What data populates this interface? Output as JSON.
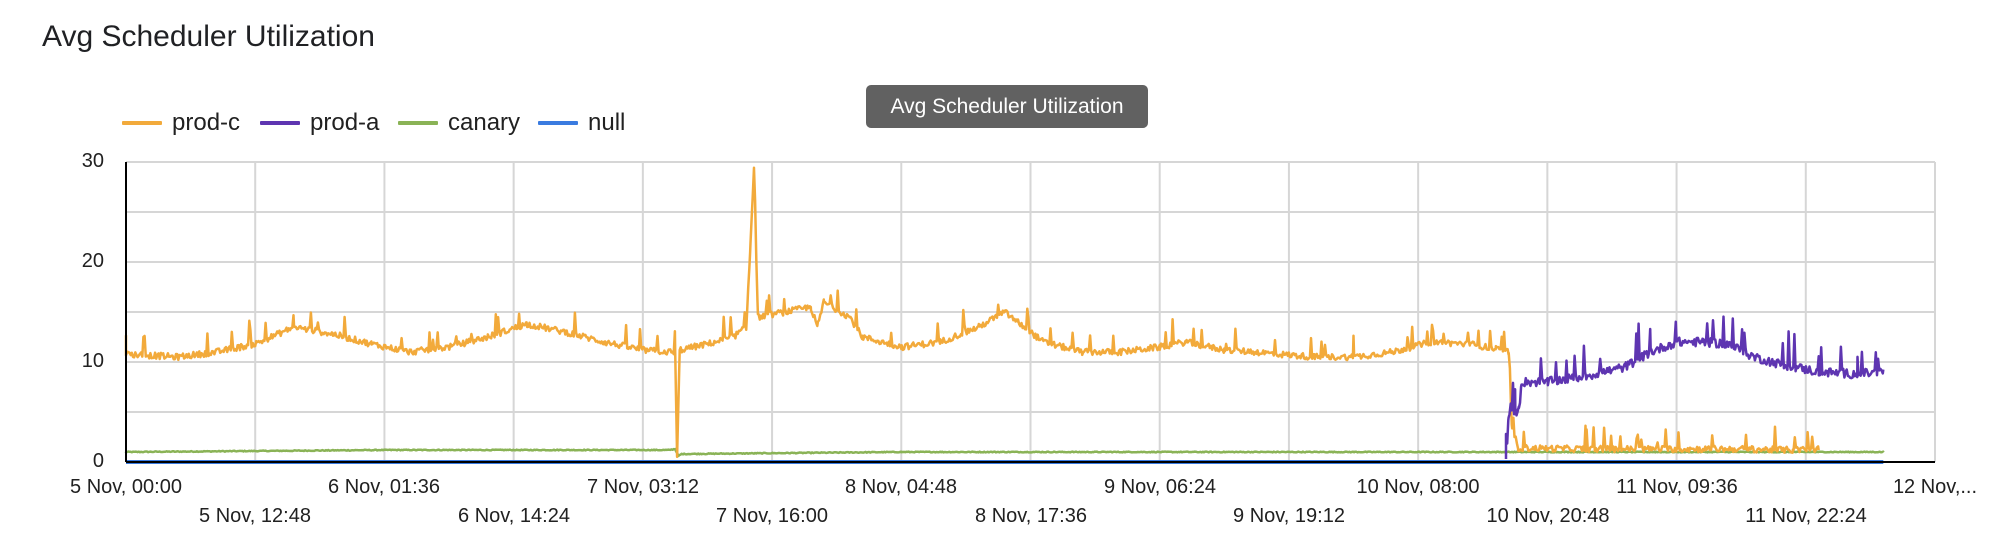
{
  "header": {
    "title": "Avg Scheduler Utilization"
  },
  "tooltip": {
    "text": "Avg Scheduler Utilization"
  },
  "legend": [
    {
      "label": "prod-c",
      "color": "#F2AA3B"
    },
    {
      "label": "prod-a",
      "color": "#5E35B1"
    },
    {
      "label": "canary",
      "color": "#8AB356"
    },
    {
      "label": "null",
      "color": "#3A7BE0"
    }
  ],
  "axes": {
    "y_ticks": [
      "30",
      "20",
      "10",
      "0"
    ],
    "x_ticks_top": [
      "5 Nov, 00:00",
      "6 Nov, 01:36",
      "7 Nov, 03:12",
      "8 Nov, 04:48",
      "9 Nov, 06:24",
      "10 Nov, 08:00",
      "11 Nov, 09:36",
      "12 Nov,..."
    ],
    "x_ticks_bottom": [
      "5 Nov, 12:48",
      "6 Nov, 14:24",
      "7 Nov, 16:00",
      "8 Nov, 17:36",
      "9 Nov, 19:12",
      "10 Nov, 20:48",
      "11 Nov, 22:24"
    ]
  },
  "chart_data": {
    "type": "line",
    "title": "Avg Scheduler Utilization",
    "xlabel": "",
    "ylabel": "",
    "ylim": [
      0,
      30
    ],
    "y_gridlines": [
      0,
      5,
      10,
      15,
      20,
      25,
      30
    ],
    "x_tick_labels": [
      "5 Nov, 00:00",
      "5 Nov, 12:48",
      "6 Nov, 01:36",
      "6 Nov, 14:24",
      "7 Nov, 03:12",
      "7 Nov, 16:00",
      "8 Nov, 04:48",
      "8 Nov, 17:36",
      "9 Nov, 06:24",
      "9 Nov, 19:12",
      "10 Nov, 08:00",
      "10 Nov, 20:48",
      "11 Nov, 09:36",
      "11 Nov, 22:24",
      "12 Nov,..."
    ],
    "x_unit": "hours since 5 Nov 00:00",
    "xlim": [
      0,
      179.2
    ],
    "grid": true,
    "legend_position": "top-left",
    "series": [
      {
        "name": "prod-c",
        "color": "#F2AA3B",
        "points": [
          [
            0,
            10.8
          ],
          [
            8,
            10.5
          ],
          [
            14,
            11.0
          ],
          [
            20,
            11.8
          ],
          [
            26,
            13.5
          ],
          [
            32,
            12.8
          ],
          [
            38,
            11.8
          ],
          [
            44,
            11.0
          ],
          [
            50,
            11.5
          ],
          [
            56,
            12.5
          ],
          [
            62,
            13.8
          ],
          [
            68,
            13.0
          ],
          [
            74,
            12.0
          ],
          [
            80,
            11.2
          ],
          [
            84,
            11.0
          ],
          [
            85,
            11.0
          ],
          [
            85.3,
            0.3
          ],
          [
            85.7,
            11.2
          ],
          [
            90,
            11.8
          ],
          [
            94,
            12.5
          ],
          [
            96,
            13.5
          ],
          [
            96.6,
            21.0
          ],
          [
            97.2,
            29.3
          ],
          [
            97.8,
            14.5
          ],
          [
            102,
            15.0
          ],
          [
            106,
            15.5
          ],
          [
            107,
            13.5
          ],
          [
            108,
            16.0
          ],
          [
            112,
            14.5
          ],
          [
            114,
            12.5
          ],
          [
            120,
            11.5
          ],
          [
            126,
            12.0
          ],
          [
            132,
            13.5
          ],
          [
            136,
            15.0
          ],
          [
            138,
            14.0
          ],
          [
            142,
            12.0
          ],
          [
            148,
            11.0
          ],
          [
            154,
            11.0
          ],
          [
            160,
            11.5
          ],
          [
            164,
            12.0
          ],
          [
            170,
            11.2
          ],
          [
            175,
            11.0
          ],
          [
            178,
            10.8
          ],
          [
            184,
            10.5
          ],
          [
            190,
            10.5
          ],
          [
            196,
            11.0
          ],
          [
            202,
            12.0
          ],
          [
            208,
            11.8
          ],
          [
            212,
            11.3
          ],
          [
            214,
            11.0
          ],
          [
            214.5,
            3.5
          ],
          [
            215.5,
            1.4
          ],
          [
            226,
            1.3
          ],
          [
            240,
            1.3
          ],
          [
            250,
            1.3
          ],
          [
            258,
            1.2
          ],
          [
            262,
            1.3
          ]
        ],
        "spike_amplitude": 1.4
      },
      {
        "name": "prod-a",
        "color": "#5E35B1",
        "points": [
          [
            213.6,
            0.2
          ],
          [
            214,
            4.5
          ],
          [
            215,
            5.0
          ],
          [
            215.6,
            5.2
          ],
          [
            216,
            8.0
          ],
          [
            220,
            8.0
          ],
          [
            226,
            8.6
          ],
          [
            232,
            9.5
          ],
          [
            236,
            11.0
          ],
          [
            240,
            12.0
          ],
          [
            244,
            12.0
          ],
          [
            248,
            11.8
          ],
          [
            252,
            10.5
          ],
          [
            256,
            9.8
          ],
          [
            262,
            9.0
          ],
          [
            268,
            8.8
          ],
          [
            272,
            9.0
          ]
        ],
        "spike_amplitude": 2.0
      },
      {
        "name": "canary",
        "color": "#8AB356",
        "points": [
          [
            0,
            1.0
          ],
          [
            40,
            1.2
          ],
          [
            84,
            1.2
          ],
          [
            85,
            1.3
          ],
          [
            85.5,
            0.6
          ],
          [
            86,
            0.8
          ],
          [
            120,
            1.0
          ],
          [
            180,
            1.0
          ],
          [
            240,
            1.0
          ],
          [
            272,
            1.0
          ]
        ],
        "spike_amplitude": 0.2
      },
      {
        "name": "null",
        "color": "#3A7BE0",
        "points": [
          [
            0,
            0
          ],
          [
            272,
            0
          ]
        ],
        "spike_amplitude": 0
      }
    ]
  }
}
